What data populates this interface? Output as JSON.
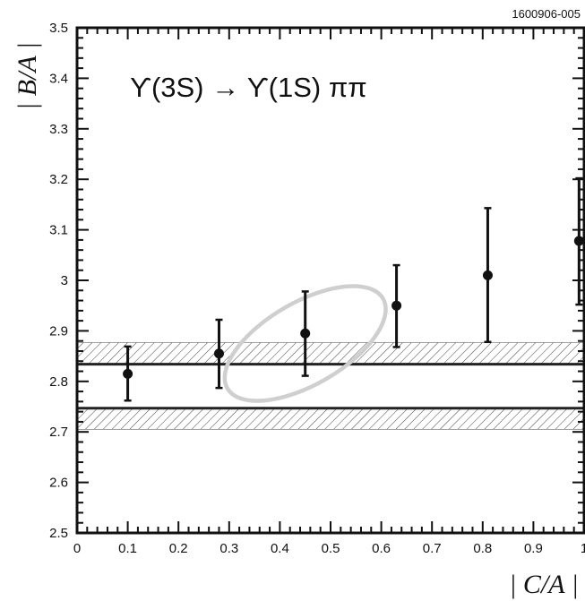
{
  "figure_id": "1600906-005",
  "chart_data": {
    "type": "scatter",
    "title": "ϒ(3S) → ϒ(1S) ππ",
    "xlabel": "| C/A |",
    "ylabel": "| B/A |",
    "xlim": [
      0,
      1
    ],
    "ylim": [
      2.5,
      3.5
    ],
    "x_ticks": [
      "0",
      "0.1",
      "0.2",
      "0.3",
      "0.4",
      "0.5",
      "0.6",
      "0.7",
      "0.8",
      "0.9",
      "1"
    ],
    "y_ticks": [
      "2.5",
      "2.6",
      "2.7",
      "2.8",
      "2.9",
      "3",
      "3.1",
      "3.2",
      "3.3",
      "3.4",
      "3.5"
    ],
    "grid": false,
    "legend": "none",
    "series": [
      {
        "x": [
          0.1,
          0.28,
          0.45,
          0.63,
          0.81,
          0.99
        ],
        "y": [
          2.815,
          2.855,
          2.895,
          2.95,
          3.01,
          3.078
        ],
        "y_low": [
          2.762,
          2.787,
          2.811,
          2.868,
          2.878,
          2.952
        ],
        "y_high": [
          2.869,
          2.922,
          2.978,
          3.03,
          3.143,
          3.202
        ]
      }
    ],
    "bands": [
      {
        "line": 2.834,
        "upper": 2.877,
        "lower": 2.834
      },
      {
        "line": 2.747,
        "upper": 2.747,
        "lower": 2.705
      }
    ],
    "ellipse": {
      "center_x": 0.45,
      "center_y": 2.875,
      "x_extent": [
        0.28,
        0.61
      ],
      "y_extent": [
        2.775,
        2.975
      ]
    }
  }
}
